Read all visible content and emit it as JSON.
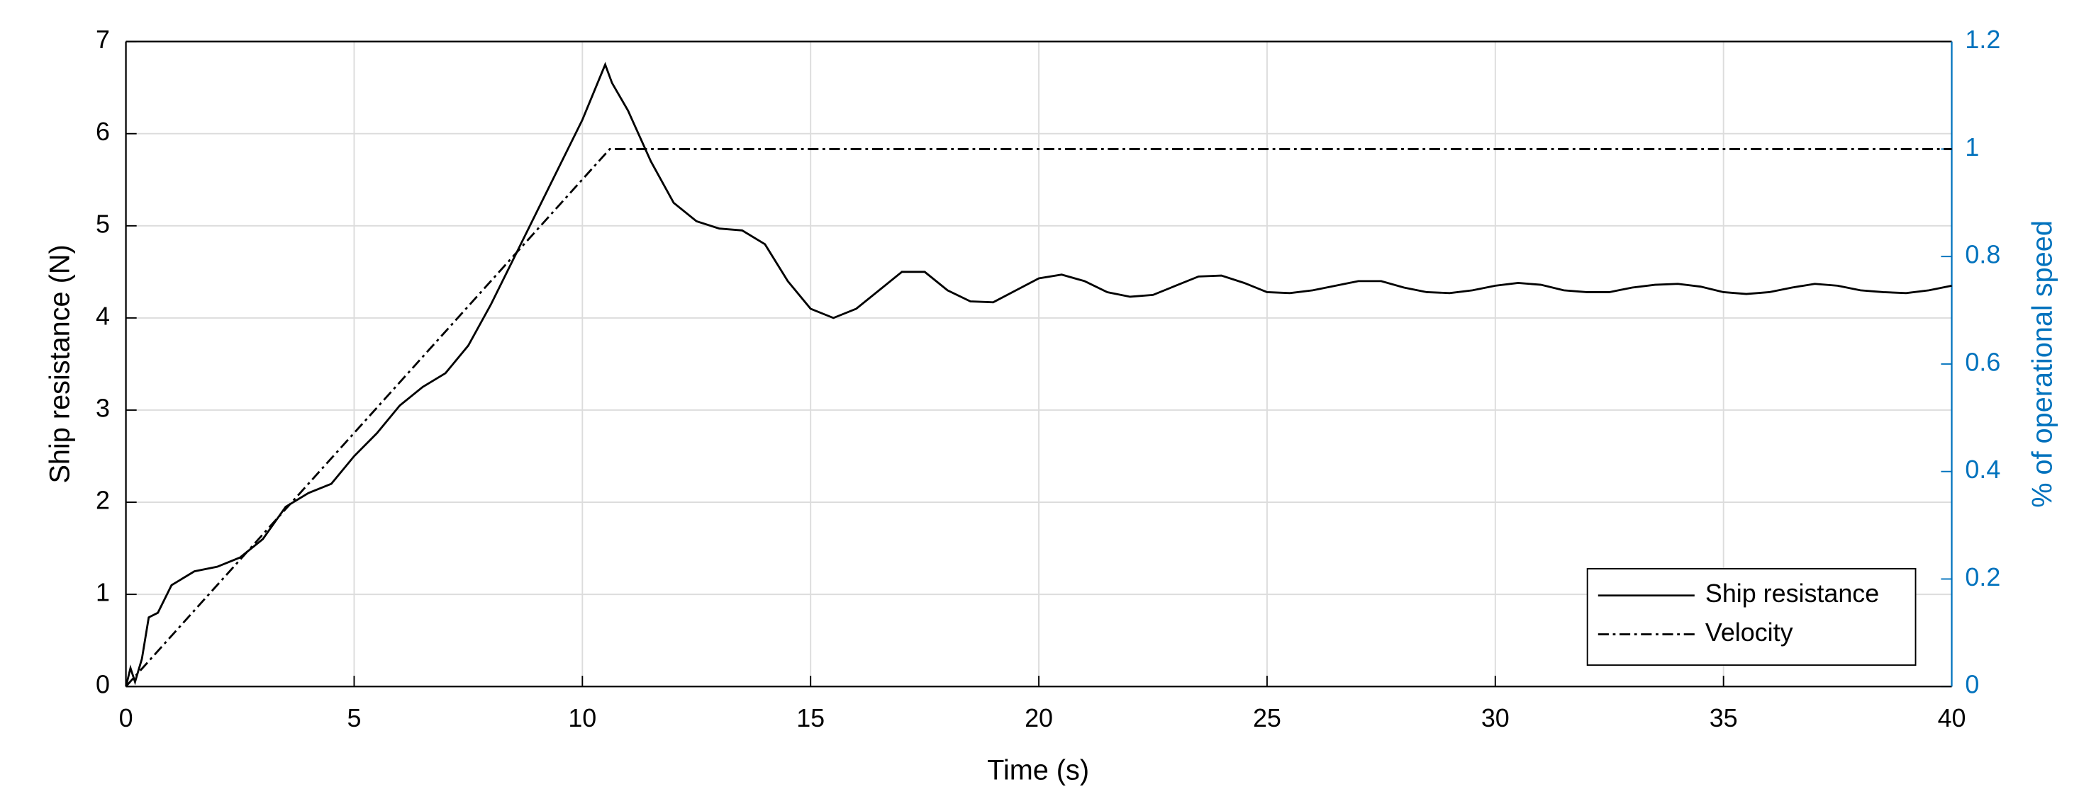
{
  "chart_data": {
    "type": "line",
    "xlabel": "Time (s)",
    "ylabel": "Ship resistance (N)",
    "y2label": "% of operational speed",
    "xlim": [
      0,
      40
    ],
    "xticks": [
      0,
      5,
      10,
      15,
      20,
      25,
      30,
      35,
      40
    ],
    "ylim": [
      0,
      7
    ],
    "yticks": [
      0,
      1,
      2,
      3,
      4,
      5,
      6,
      7
    ],
    "y2lim": [
      0,
      1.2
    ],
    "y2ticks": [
      0,
      0.2,
      0.4,
      0.6,
      0.8,
      1,
      1.2
    ],
    "y2color": "#0072bd",
    "grid": true,
    "legend": "lower right",
    "series": [
      {
        "name": "Ship resistance",
        "color": "#000000",
        "line_style": "solid",
        "x": [
          0,
          0.1,
          0.2,
          0.35,
          0.5,
          0.7,
          1,
          1.5,
          2,
          2.5,
          3,
          3.5,
          4,
          4.5,
          5,
          5.5,
          6,
          6.5,
          7,
          7.5,
          8,
          8.5,
          9,
          9.5,
          10,
          10.5,
          10.65,
          11,
          11.5,
          12,
          12.5,
          13,
          13.5,
          14,
          14.5,
          15,
          15.5,
          16,
          16.5,
          17,
          17.5,
          18,
          18.5,
          19,
          19.5,
          20,
          20.5,
          21,
          21.5,
          22,
          22.5,
          23,
          23.5,
          24,
          24.5,
          25,
          25.5,
          26,
          26.5,
          27,
          27.5,
          28,
          28.5,
          29,
          29.5,
          30,
          30.5,
          31,
          31.5,
          32,
          32.5,
          33,
          33.5,
          34,
          34.5,
          35,
          35.5,
          36,
          36.5,
          37,
          37.5,
          38,
          38.5,
          39,
          39.5,
          40
        ],
        "values": [
          0,
          0.2,
          0.05,
          0.3,
          0.75,
          0.8,
          1.1,
          1.25,
          1.3,
          1.4,
          1.6,
          1.95,
          2.1,
          2.2,
          2.5,
          2.75,
          3.05,
          3.25,
          3.4,
          3.7,
          4.15,
          4.65,
          5.15,
          5.65,
          6.15,
          6.75,
          6.55,
          6.25,
          5.7,
          5.25,
          5.05,
          4.97,
          4.95,
          4.8,
          4.4,
          4.1,
          4.0,
          4.1,
          4.3,
          4.5,
          4.5,
          4.3,
          4.18,
          4.17,
          4.3,
          4.43,
          4.47,
          4.4,
          4.28,
          4.23,
          4.25,
          4.35,
          4.45,
          4.46,
          4.38,
          4.28,
          4.27,
          4.3,
          4.35,
          4.4,
          4.4,
          4.33,
          4.28,
          4.27,
          4.3,
          4.35,
          4.38,
          4.36,
          4.3,
          4.28,
          4.28,
          4.33,
          4.36,
          4.37,
          4.34,
          4.28,
          4.26,
          4.28,
          4.33,
          4.37,
          4.35,
          4.3,
          4.28,
          4.27,
          4.3,
          4.35
        ]
      },
      {
        "name": "Velocity",
        "color": "#000000",
        "line_style": "dashdot",
        "axis": "y2",
        "x": [
          0,
          10.6,
          40
        ],
        "values": [
          0,
          1,
          1
        ]
      }
    ]
  }
}
